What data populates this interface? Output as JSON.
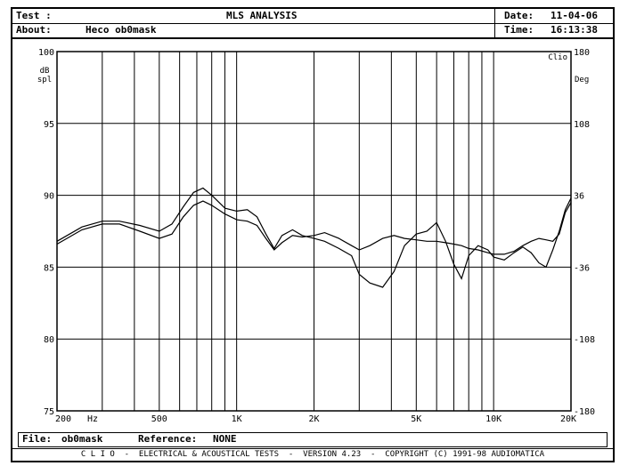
{
  "header": {
    "test_label": "Test :",
    "about_label": "About:",
    "about_value": "Heco ob0mask",
    "title": "MLS ANALYSIS",
    "date_label": "Date:",
    "date_value": "11-04-06",
    "time_label": "Time:",
    "time_value": "16:13:38"
  },
  "file_line": {
    "file_label": "File:",
    "file_value": "ob0mask",
    "reference_label": "Reference:",
    "reference_value": "NONE"
  },
  "footer": {
    "text": "C L I O  -  ELECTRICAL & ACOUSTICAL TESTS  -  VERSION 4.23  -  COPYRIGHT (C) 1991-98 AUDIOMATICA"
  },
  "chart_data": {
    "type": "line",
    "xscale": "log",
    "xlim": [
      200,
      20000
    ],
    "ylim": [
      75,
      100
    ],
    "y2lim": [
      -180,
      180
    ],
    "grid": true,
    "x_ticks": [
      {
        "value": 200,
        "label": "200"
      },
      {
        "value": 500,
        "label": "500"
      },
      {
        "value": 1000,
        "label": "1K"
      },
      {
        "value": 2000,
        "label": "2K"
      },
      {
        "value": 5000,
        "label": "5K"
      },
      {
        "value": 10000,
        "label": "10K"
      },
      {
        "value": 20000,
        "label": "20K"
      }
    ],
    "x_unit": "Hz",
    "y_ticks": [
      100,
      95,
      90,
      85,
      80,
      75
    ],
    "y_label_top": "dB",
    "y_label_bottom": "spl",
    "y2_ticks": [
      180,
      108,
      36,
      -36,
      -108,
      -180
    ],
    "y2_label": "Deg",
    "brand": "Clio",
    "series": [
      {
        "x": [
          200,
          250,
          300,
          350,
          420,
          500,
          560,
          620,
          680,
          740,
          800,
          900,
          1000,
          1100,
          1200,
          1300,
          1400,
          1500,
          1650,
          1800,
          2000,
          2200,
          2500,
          2800,
          3000,
          3300,
          3700,
          4100,
          4500,
          5000,
          5500,
          6000,
          6500,
          7000,
          7500,
          8000,
          8700,
          9500,
          10000,
          11000,
          12000,
          13000,
          14000,
          15000,
          16000,
          17000,
          18000,
          19000,
          20000
        ],
        "y": [
          86.8,
          87.8,
          88.2,
          88.2,
          87.9,
          87.5,
          88.0,
          89.2,
          90.2,
          90.5,
          90.0,
          89.1,
          88.9,
          89.0,
          88.5,
          87.3,
          86.3,
          87.2,
          87.6,
          87.2,
          87.0,
          86.8,
          86.3,
          85.8,
          84.5,
          83.9,
          83.6,
          84.7,
          86.5,
          87.3,
          87.5,
          88.1,
          86.8,
          85.2,
          84.2,
          85.8,
          86.5,
          86.2,
          85.7,
          85.5,
          86.0,
          86.4,
          86.0,
          85.3,
          85.0,
          86.2,
          87.5,
          89.0,
          89.8
        ]
      },
      {
        "x": [
          200,
          250,
          300,
          350,
          420,
          500,
          560,
          620,
          680,
          740,
          800,
          900,
          1000,
          1100,
          1200,
          1300,
          1400,
          1500,
          1650,
          1800,
          2000,
          2200,
          2500,
          2800,
          3000,
          3300,
          3700,
          4100,
          4500,
          5000,
          5500,
          6000,
          6500,
          7000,
          7500,
          8000,
          8700,
          9500,
          10000,
          11000,
          12000,
          13000,
          14000,
          15000,
          16000,
          17000,
          18000,
          19000,
          20000
        ],
        "y": [
          86.6,
          87.6,
          88.0,
          88.0,
          87.5,
          87.0,
          87.3,
          88.5,
          89.3,
          89.6,
          89.3,
          88.7,
          88.3,
          88.2,
          87.9,
          87.0,
          86.2,
          86.7,
          87.2,
          87.1,
          87.2,
          87.4,
          87.0,
          86.5,
          86.2,
          86.5,
          87.0,
          87.2,
          87.0,
          86.9,
          86.8,
          86.8,
          86.7,
          86.6,
          86.5,
          86.3,
          86.2,
          86.0,
          85.9,
          85.9,
          86.1,
          86.5,
          86.8,
          87.0,
          86.9,
          86.8,
          87.3,
          88.8,
          89.5
        ]
      }
    ]
  }
}
